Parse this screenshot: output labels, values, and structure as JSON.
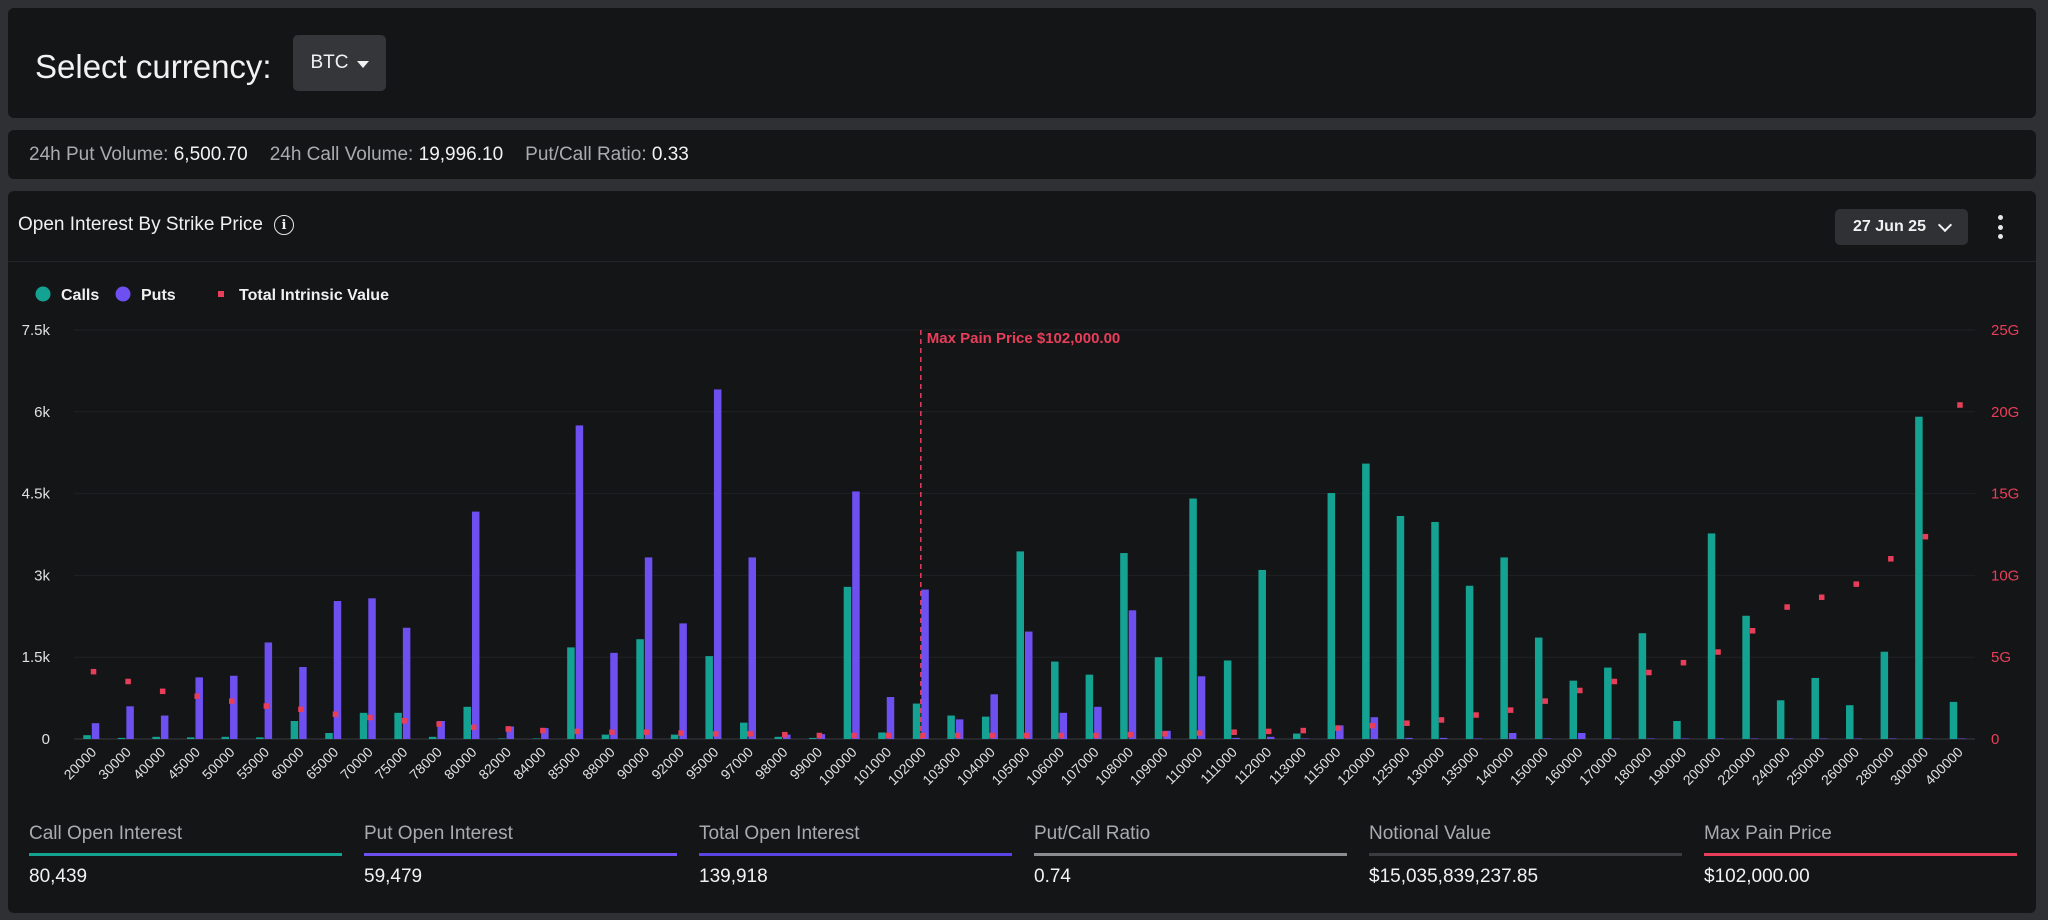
{
  "currency": {
    "label": "Select currency:",
    "selected": "BTC"
  },
  "volume": [
    {
      "key": "24h Put Volume:",
      "value": "6,500.70"
    },
    {
      "key": "24h Call Volume:",
      "value": "19,996.10"
    },
    {
      "key": "Put/Call Ratio:",
      "value": "0.33"
    }
  ],
  "chart_panel": {
    "title": "Open Interest By Strike Price",
    "expiry": "27 Jun 25"
  },
  "colors": {
    "calls": "#14a392",
    "puts": "#6e4ff0",
    "intrinsic": "#e83e5a",
    "maxpain": "#e83e5a"
  },
  "chart_data": {
    "type": "bar",
    "legend": [
      "Calls",
      "Puts",
      "Total Intrinsic Value"
    ],
    "legend_position": "top-left",
    "annotation": "Max Pain Price $102,000.00",
    "max_pain_strike": "102000",
    "y_ticks": [
      "0",
      "1.5k",
      "3k",
      "4.5k",
      "6k",
      "7.5k"
    ],
    "y_range": [
      0,
      7500
    ],
    "y2_ticks": [
      "0",
      "5G",
      "10G",
      "15G",
      "20G",
      "25G"
    ],
    "y2_range": [
      0,
      25
    ],
    "grid": true,
    "categories": [
      "20000",
      "30000",
      "40000",
      "45000",
      "50000",
      "55000",
      "60000",
      "65000",
      "70000",
      "75000",
      "78000",
      "80000",
      "82000",
      "84000",
      "85000",
      "88000",
      "90000",
      "92000",
      "95000",
      "97000",
      "98000",
      "99000",
      "100000",
      "101000",
      "102000",
      "103000",
      "104000",
      "105000",
      "106000",
      "107000",
      "108000",
      "109000",
      "110000",
      "111000",
      "112000",
      "113000",
      "115000",
      "120000",
      "125000",
      "130000",
      "135000",
      "140000",
      "150000",
      "160000",
      "170000",
      "180000",
      "190000",
      "200000",
      "220000",
      "240000",
      "250000",
      "260000",
      "280000",
      "300000",
      "400000"
    ],
    "series": [
      {
        "name": "Calls",
        "values": [
          70,
          20,
          40,
          30,
          40,
          30,
          330,
          110,
          480,
          480,
          40,
          590,
          10,
          10,
          1680,
          80,
          1830,
          80,
          1520,
          300,
          40,
          20,
          2790,
          120,
          650,
          430,
          410,
          3440,
          1420,
          1180,
          3410,
          1500,
          4410,
          1440,
          3100,
          100,
          4510,
          5050,
          4090,
          3980,
          2810,
          3330,
          1860,
          1070,
          1310,
          1940,
          330,
          3770,
          2260,
          710,
          1120,
          620,
          1600,
          5910,
          680
        ]
      },
      {
        "name": "Puts",
        "values": [
          290,
          600,
          430,
          1130,
          1160,
          1770,
          1320,
          2530,
          2580,
          2040,
          330,
          4170,
          230,
          200,
          5750,
          1580,
          3330,
          2120,
          6410,
          3330,
          80,
          90,
          4540,
          770,
          2740,
          360,
          820,
          1970,
          480,
          590,
          2360,
          150,
          1150,
          20,
          40,
          10,
          250,
          400,
          20,
          20,
          10,
          110,
          10,
          110,
          10,
          10,
          10,
          10,
          10,
          10,
          10,
          10,
          10,
          10,
          10
        ]
      },
      {
        "name": "Total Intrinsic Value",
        "values": [
          4.1,
          3.5,
          2.9,
          2.6,
          2.3,
          2.0,
          1.8,
          1.5,
          1.3,
          1.1,
          0.9,
          0.7,
          0.6,
          0.5,
          0.45,
          0.4,
          0.4,
          0.35,
          0.3,
          0.3,
          0.25,
          0.2,
          0.2,
          0.2,
          0.2,
          0.2,
          0.2,
          0.2,
          0.2,
          0.2,
          0.25,
          0.3,
          0.35,
          0.4,
          0.45,
          0.5,
          0.65,
          0.8,
          0.95,
          1.15,
          1.45,
          1.75,
          2.3,
          2.95,
          3.5,
          4.05,
          4.65,
          5.3,
          6.6,
          8.05,
          8.65,
          9.45,
          11.0,
          12.35,
          20.4
        ]
      }
    ]
  },
  "stats": [
    {
      "label": "Call Open Interest",
      "value": "80,439",
      "color": "#14a392"
    },
    {
      "label": "Put Open Interest",
      "value": "59,479",
      "color": "#6e4ff0"
    },
    {
      "label": "Total Open Interest",
      "value": "139,918",
      "color": "#5a44e6"
    },
    {
      "label": "Put/Call Ratio",
      "value": "0.74",
      "color": "#8a8c90"
    },
    {
      "label": "Notional Value",
      "value": "$15,035,839,237.85",
      "color": "#3a3c40"
    },
    {
      "label": "Max Pain Price",
      "value": "$102,000.00",
      "color": "#e83e5a"
    }
  ]
}
